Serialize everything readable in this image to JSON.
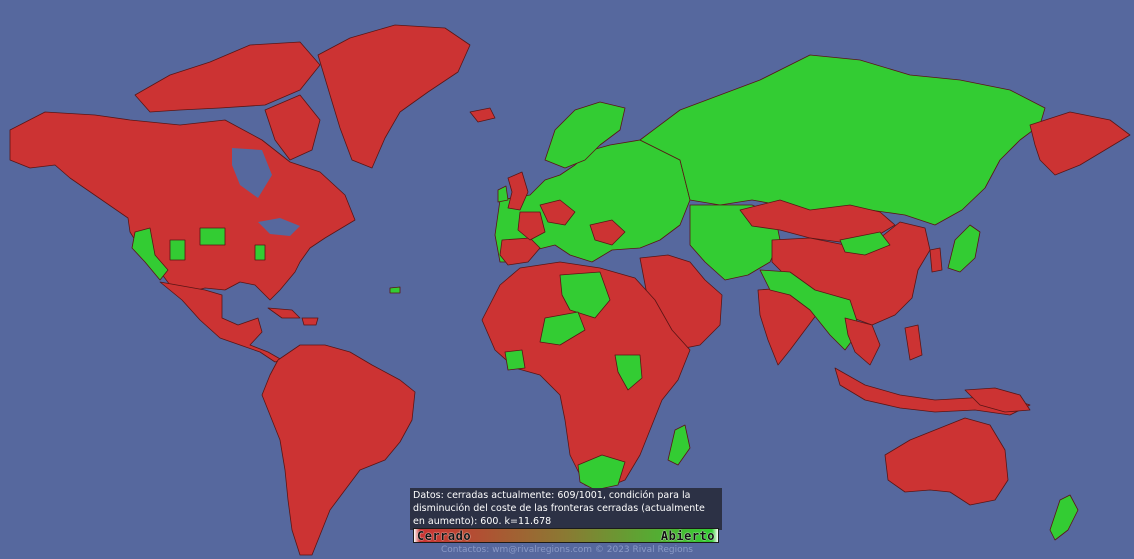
{
  "colors": {
    "ocean": "#56689e",
    "closed": "#cc3333",
    "open": "#33cc33",
    "border": "#5a1515"
  },
  "info": {
    "text": "Datos: cerradas actualmente: 609/1001, condición para la disminución del coste de las fronteras cerradas (actualmente en aumento): 600. k=11.678"
  },
  "legend": {
    "closed_label": "Cerrado",
    "open_label": "Abierto"
  },
  "footer": {
    "text": "Contactos: wm@rivalregions.com © 2023 Rival Regions"
  }
}
